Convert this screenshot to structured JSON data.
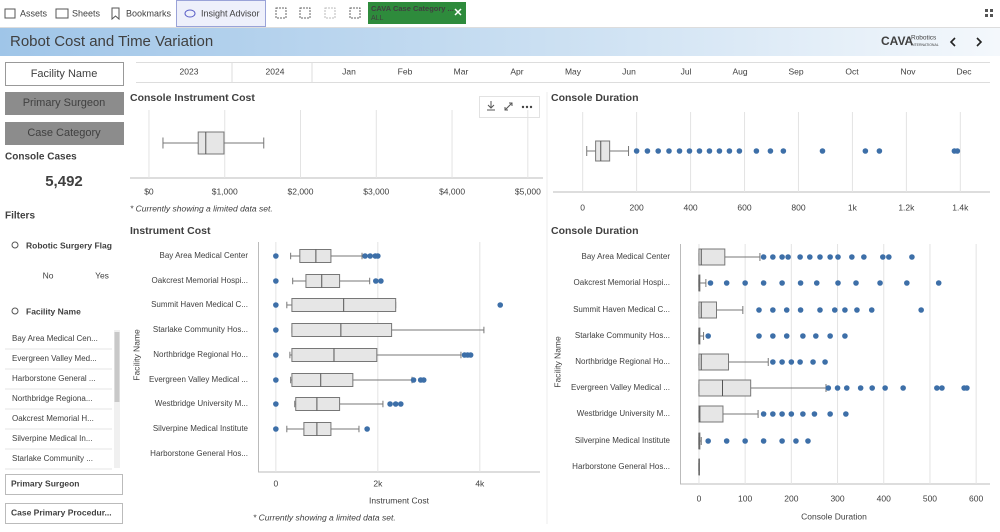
{
  "toolbar": {
    "assets": "Assets",
    "sheets": "Sheets",
    "bookmarks": "Bookmarks",
    "insight_advisor": "Insight Advisor",
    "selection": {
      "field": "CAVA Case Category ...",
      "value": "ALL"
    }
  },
  "sheet": {
    "title": "Robot Cost and Time Variation",
    "logo": "CAVA",
    "logo_line1": "Robotics",
    "logo_line2": "INTERNATIONAL"
  },
  "timeline": [
    "2023",
    "2024",
    "Jan",
    "Feb",
    "Mar",
    "Apr",
    "May",
    "Jun",
    "Jul",
    "Aug",
    "Sep",
    "Oct",
    "Nov",
    "Dec"
  ],
  "sidebar": {
    "buttons": [
      "Facility Name",
      "Primary Surgeon",
      "Case Category"
    ],
    "kpi_label": "Console Cases",
    "kpi_value": "5,492",
    "filters_title": "Filters",
    "flag_filter": {
      "title": "Robotic Surgery Flag",
      "options": [
        "No",
        "Yes"
      ]
    },
    "facility_filter": {
      "title": "Facility Name",
      "items": [
        "Bay Area Medical Cen...",
        "Evergreen Valley Med...",
        "Harborstone General ...",
        "Northbridge Regiona...",
        "Oakcrest Memorial H...",
        "Silverpine Medical In...",
        "Starlake Community ..."
      ]
    },
    "bottom_filters": [
      "Primary Surgeon",
      "Case Primary Procedur..."
    ]
  },
  "chart_data": [
    {
      "type": "boxplot",
      "title": "Console Instrument Cost",
      "note": "* Currently showing a limited data set.",
      "xlim": [
        -250,
        5200
      ],
      "xticks": [
        {
          "value": 0,
          "label": "$0"
        },
        {
          "value": 1000,
          "label": "$1,000"
        },
        {
          "value": 2000,
          "label": "$2,000"
        },
        {
          "value": 3000,
          "label": "$3,000"
        },
        {
          "value": 4000,
          "label": "$4,000"
        },
        {
          "value": 5000,
          "label": "$5,000"
        }
      ],
      "min": [
        185
      ],
      "q1": [
        650
      ],
      "median": [
        750
      ],
      "q3": [
        990
      ],
      "max": [
        1515
      ],
      "outliers": [
        []
      ],
      "box_color": "#e6e6e6",
      "outlier_color": "#3d6fa8",
      "grid": true
    },
    {
      "type": "boxplot",
      "title": "Console Duration",
      "xlim": [
        -110,
        1510
      ],
      "xticks": [
        0,
        200,
        400,
        600,
        800,
        {
          "value": 1000,
          "label": "1k"
        },
        {
          "value": 1200,
          "label": "1.2k"
        },
        {
          "value": 1400,
          "label": "1.4k"
        }
      ],
      "min": [
        15
      ],
      "q1": [
        48
      ],
      "median": [
        67
      ],
      "q3": [
        100
      ],
      "max": [
        170
      ],
      "outliers": [
        [
          200,
          240,
          280,
          320,
          359,
          396,
          433,
          470,
          507,
          544,
          581,
          644,
          696,
          744,
          889,
          1048,
          1100,
          1378,
          1389
        ]
      ],
      "box_color": "#e6e6e6",
      "outlier_color": "#3d6fa8",
      "grid": true
    },
    {
      "type": "boxplot",
      "title": "Instrument Cost",
      "x_label": "Instrument Cost",
      "y_label": "Facility Name",
      "note": "* Currently showing a limited data set.",
      "xlim": [
        -350,
        5180
      ],
      "xticks": [
        0,
        {
          "value": 2000,
          "label": "2k"
        },
        {
          "value": 4000,
          "label": "4k"
        }
      ],
      "categories": [
        "Bay Area Medical Center",
        "Oakcrest Memorial Hospi...",
        "Summit Haven Medical C...",
        "Starlake Community Hos...",
        "Northbridge Regional Ho...",
        "Evergreen Valley Medical ...",
        "Westbridge University M...",
        "Silverpine Medical Institute",
        "Harborstone General Hos..."
      ],
      "min": [
        290,
        330,
        215,
        315,
        275,
        290,
        370,
        215,
        null
      ],
      "q1": [
        470,
        590,
        315,
        315,
        315,
        315,
        390,
        550,
        null
      ],
      "median": [
        785,
        900,
        1330,
        1275,
        1140,
        880,
        805,
        805,
        null
      ],
      "q3": [
        1080,
        1250,
        2350,
        2270,
        1980,
        1510,
        1250,
        1080,
        null
      ],
      "max": [
        1690,
        1840,
        2350,
        4080,
        3630,
        2670,
        2100,
        1630,
        null
      ],
      "outliers": [
        [
          0,
          1750,
          1850,
          1950,
          2000
        ],
        [
          0,
          1960,
          2060
        ],
        [
          0,
          4400
        ],
        [
          0
        ],
        [
          0,
          3700,
          3760,
          3820
        ],
        [
          0,
          2700,
          2840,
          2900
        ],
        [
          0,
          2240,
          2350,
          2450
        ],
        [
          0,
          1790
        ],
        []
      ],
      "box_color": "#e6e6e6",
      "outlier_color": "#3d6fa8",
      "grid": true
    },
    {
      "type": "boxplot",
      "title": "Console Duration",
      "x_label": "Console Duration",
      "y_label": "Facility Name",
      "xlim": [
        -41,
        630
      ],
      "xticks": [
        0,
        100,
        200,
        300,
        400,
        500,
        600
      ],
      "categories": [
        "Bay Area Medical Center",
        "Oakcrest Memorial Hospi...",
        "Summit Haven Medical C...",
        "Starlake Community Hos...",
        "Northbridge Regional Ho...",
        "Evergreen Valley Medical ...",
        "Westbridge University M...",
        "Silverpine Medical Institute",
        "Harborstone General Hos..."
      ],
      "min": [
        0,
        0,
        0,
        0,
        0,
        0,
        0,
        0,
        0
      ],
      "q1": [
        0,
        0,
        0,
        0,
        0,
        0,
        0,
        0,
        0
      ],
      "median": [
        5,
        0,
        5,
        0,
        5,
        51,
        2,
        0,
        0
      ],
      "q3": [
        56,
        2,
        38,
        2,
        64,
        112,
        52,
        2,
        0
      ],
      "max": [
        132,
        15,
        95,
        10,
        150,
        275,
        128,
        5,
        0
      ],
      "outliers": [
        [
          140,
          160,
          180,
          193,
          219,
          240,
          262,
          284,
          301,
          331,
          357,
          398,
          411,
          461
        ],
        [
          25,
          60,
          100,
          140,
          180,
          220,
          255,
          301,
          340,
          392,
          450,
          519
        ],
        [
          130,
          160,
          190,
          220,
          262,
          294,
          316,
          342,
          374,
          481
        ],
        [
          20,
          130,
          160,
          190,
          225,
          253,
          284,
          316
        ],
        [
          160,
          180,
          200,
          219,
          247,
          273
        ],
        [
          280,
          300,
          320,
          350,
          375,
          403,
          442,
          515,
          526,
          574,
          580
        ],
        [
          140,
          160,
          180,
          200,
          225,
          250,
          284,
          318
        ],
        [
          20,
          60,
          100,
          140,
          180,
          210,
          236
        ],
        []
      ],
      "box_color": "#e6e6e6",
      "outlier_color": "#3d6fa8",
      "grid": true
    }
  ]
}
